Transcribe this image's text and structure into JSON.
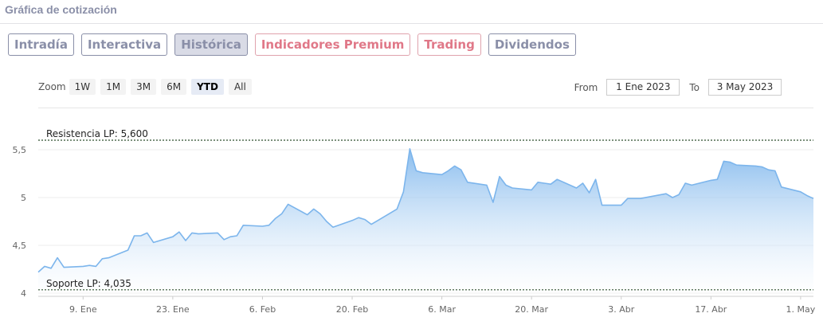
{
  "section_title": "Gráfica de cotización",
  "tabs": [
    {
      "label": "Intradía",
      "style": "normal"
    },
    {
      "label": "Interactiva",
      "style": "normal"
    },
    {
      "label": "Histórica",
      "style": "active"
    },
    {
      "label": "Indicadores Premium",
      "style": "premium"
    },
    {
      "label": "Trading",
      "style": "premium"
    },
    {
      "label": "Dividendos",
      "style": "normal"
    }
  ],
  "zoom": {
    "label": "Zoom",
    "buttons": [
      "1W",
      "1M",
      "3M",
      "6M",
      "YTD",
      "All"
    ],
    "selected": "YTD"
  },
  "range": {
    "from_label": "From",
    "from_value": "1 Ene 2023",
    "to_label": "To",
    "to_value": "3 May 2023"
  },
  "colors": {
    "line": "#7cb5ec",
    "area_top": "#7cb5ec",
    "area_bottom": "#ffffff",
    "plotline": "#2f4f2f",
    "tab": "#8a8fa8",
    "premium": "#e07888"
  },
  "chart_data": {
    "type": "area",
    "ylim": [
      4,
      5.6
    ],
    "xlim": [
      "2023-01-02",
      "2023-05-03"
    ],
    "ytick_labels": [
      "4",
      "4,5",
      "5",
      "5,5"
    ],
    "yticks": [
      4,
      4.5,
      5,
      5.5
    ],
    "xtick_labels": [
      "9. Ene",
      "23. Ene",
      "6. Feb",
      "20. Feb",
      "6. Mar",
      "20. Mar",
      "3. Abr",
      "17. Abr",
      "1. May"
    ],
    "xticks": [
      "2023-01-09",
      "2023-01-23",
      "2023-02-06",
      "2023-02-20",
      "2023-03-06",
      "2023-03-20",
      "2023-04-03",
      "2023-04-17",
      "2023-05-01"
    ],
    "plot_lines": [
      {
        "label": "Resistencia LP: 5,600",
        "value": 5.6
      },
      {
        "label": "Soporte LP: 4,035",
        "value": 4.035
      }
    ],
    "series": [
      {
        "x": [
          "2023-01-02",
          "2023-01-03",
          "2023-01-04",
          "2023-01-05",
          "2023-01-06",
          "2023-01-09",
          "2023-01-10",
          "2023-01-11",
          "2023-01-12",
          "2023-01-13",
          "2023-01-16",
          "2023-01-17",
          "2023-01-18",
          "2023-01-19",
          "2023-01-20",
          "2023-01-23",
          "2023-01-24",
          "2023-01-25",
          "2023-01-26",
          "2023-01-27",
          "2023-01-30",
          "2023-01-31",
          "2023-02-01",
          "2023-02-02",
          "2023-02-03",
          "2023-02-06",
          "2023-02-07",
          "2023-02-08",
          "2023-02-09",
          "2023-02-10",
          "2023-02-13",
          "2023-02-14",
          "2023-02-15",
          "2023-02-16",
          "2023-02-17",
          "2023-02-20",
          "2023-02-21",
          "2023-02-22",
          "2023-02-23",
          "2023-02-24",
          "2023-02-27",
          "2023-02-28",
          "2023-03-01",
          "2023-03-02",
          "2023-03-03",
          "2023-03-06",
          "2023-03-07",
          "2023-03-08",
          "2023-03-09",
          "2023-03-10",
          "2023-03-13",
          "2023-03-14",
          "2023-03-15",
          "2023-03-16",
          "2023-03-17",
          "2023-03-20",
          "2023-03-21",
          "2023-03-22",
          "2023-03-23",
          "2023-03-24",
          "2023-03-27",
          "2023-03-28",
          "2023-03-29",
          "2023-03-30",
          "2023-03-31",
          "2023-04-03",
          "2023-04-04",
          "2023-04-05",
          "2023-04-06",
          "2023-04-10",
          "2023-04-11",
          "2023-04-12",
          "2023-04-13",
          "2023-04-14",
          "2023-04-17",
          "2023-04-18",
          "2023-04-19",
          "2023-04-20",
          "2023-04-21",
          "2023-04-24",
          "2023-04-25",
          "2023-04-26",
          "2023-04-27",
          "2023-04-28",
          "2023-05-01",
          "2023-05-02",
          "2023-05-03"
        ],
        "values": [
          4.22,
          4.28,
          4.26,
          4.37,
          4.27,
          4.28,
          4.29,
          4.28,
          4.36,
          4.37,
          4.45,
          4.6,
          4.6,
          4.63,
          4.53,
          4.59,
          4.64,
          4.55,
          4.63,
          4.62,
          4.63,
          4.56,
          4.59,
          4.6,
          4.71,
          4.7,
          4.71,
          4.78,
          4.83,
          4.93,
          4.82,
          4.88,
          4.83,
          4.75,
          4.69,
          4.76,
          4.79,
          4.77,
          4.72,
          4.76,
          4.88,
          5.06,
          5.51,
          5.28,
          5.26,
          5.24,
          5.28,
          5.33,
          5.29,
          5.16,
          5.13,
          4.95,
          5.22,
          5.13,
          5.1,
          5.08,
          5.16,
          5.15,
          5.14,
          5.19,
          5.1,
          5.15,
          5.05,
          5.19,
          4.92,
          4.92,
          4.99,
          4.99,
          4.99,
          5.04,
          5.0,
          5.03,
          5.15,
          5.13,
          5.18,
          5.19,
          5.38,
          5.37,
          5.34,
          5.33,
          5.32,
          5.29,
          5.28,
          5.11,
          5.06,
          5.02,
          4.99
        ]
      }
    ]
  }
}
